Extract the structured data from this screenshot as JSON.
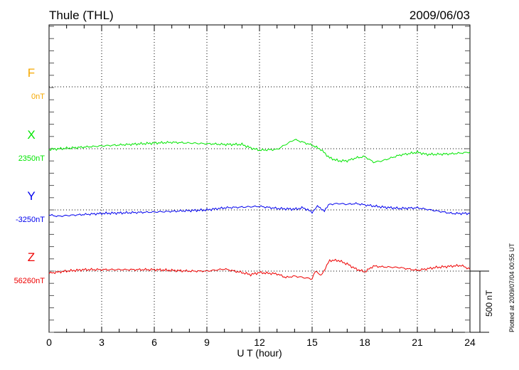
{
  "chart_data": {
    "type": "line",
    "title": "Thule (THL)",
    "date": "2009/06/03",
    "xlabel": "U T (hour)",
    "xlim": [
      0,
      24
    ],
    "xticks": [
      "0",
      "3",
      "6",
      "9",
      "12",
      "15",
      "18",
      "21",
      "24"
    ],
    "grid": true,
    "scale_bar": "500 nT",
    "footnote": "Plotted at 2009/07/04 00:55 UT",
    "series": [
      {
        "name": "F",
        "baseline_label": "0nT",
        "baseline": 0,
        "color": "#f5a800",
        "x": [],
        "values": []
      },
      {
        "name": "X",
        "baseline_label": "2350nT",
        "baseline": 2350,
        "color": "#00e600",
        "x": [
          0,
          3,
          6,
          7,
          9,
          10,
          11,
          11.5,
          12,
          13,
          13.5,
          14,
          14.5,
          15,
          15.5,
          16,
          16.5,
          17,
          17.5,
          18,
          18.5,
          19,
          19.5,
          20,
          21,
          21.5,
          22,
          23,
          24
        ],
        "values": [
          2344,
          2373,
          2396,
          2402,
          2391,
          2385,
          2385,
          2356,
          2338,
          2344,
          2385,
          2425,
          2402,
          2379,
          2344,
          2275,
          2251,
          2251,
          2275,
          2286,
          2240,
          2251,
          2275,
          2298,
          2321,
          2304,
          2304,
          2309,
          2321
        ]
      },
      {
        "name": "Y",
        "baseline_label": "-3250nT",
        "baseline": -3250,
        "color": "#0000ee",
        "x": [
          0,
          0.5,
          1,
          3,
          6,
          8,
          9,
          10,
          11,
          12,
          13,
          14,
          14.5,
          15,
          15.3,
          15.7,
          16,
          16.5,
          17,
          17.5,
          18,
          19,
          20,
          21,
          22,
          23,
          24
        ],
        "values": [
          -3291,
          -3302,
          -3296,
          -3279,
          -3267,
          -3256,
          -3250,
          -3233,
          -3227,
          -3221,
          -3238,
          -3244,
          -3233,
          -3267,
          -3221,
          -3256,
          -3204,
          -3198,
          -3204,
          -3198,
          -3209,
          -3227,
          -3238,
          -3233,
          -3256,
          -3279,
          -3279
        ]
      },
      {
        "name": "Z",
        "baseline_label": "56260nT",
        "baseline": 56260,
        "color": "#ee0000",
        "x": [
          0,
          1,
          2,
          3,
          6,
          8,
          9,
          10,
          11,
          11.5,
          12,
          13,
          13.5,
          14,
          15,
          15.2,
          15.5,
          16,
          16.5,
          17,
          17.5,
          18,
          18.5,
          19,
          20,
          21,
          22,
          23,
          23.5,
          24
        ],
        "values": [
          56243,
          56260,
          56272,
          56272,
          56272,
          56260,
          56260,
          56277,
          56248,
          56231,
          56248,
          56237,
          56208,
          56219,
          56196,
          56266,
          56219,
          56347,
          56347,
          56318,
          56277,
          56254,
          56301,
          56295,
          56289,
          56266,
          56289,
          56301,
          56306,
          56277
        ]
      }
    ]
  }
}
